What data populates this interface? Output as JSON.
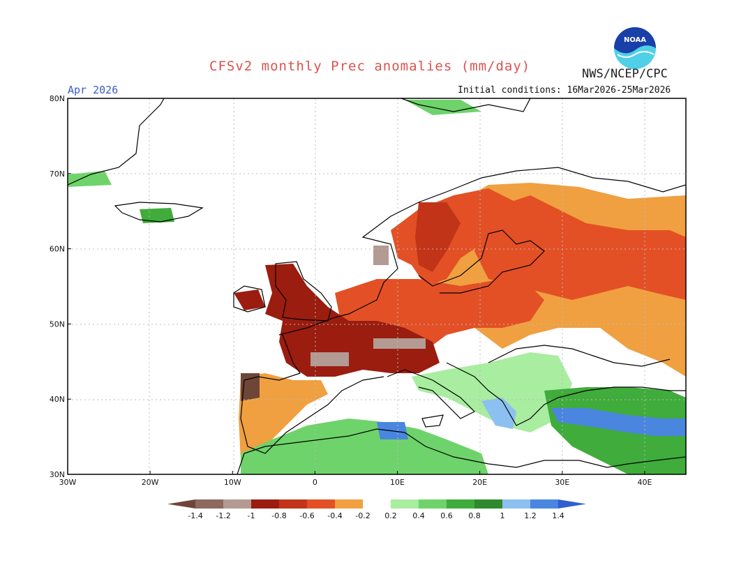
{
  "header": {
    "title": "CFSv2 monthly Prec anomalies (mm/day)",
    "agency": "NWS/NCEP/CPC",
    "logo_text": "NOAA",
    "target_month": "Apr 2026",
    "initial_conditions": "Initial conditions: 16Mar2026-25Mar2026"
  },
  "axes": {
    "lat_labels": [
      "80N",
      "70N",
      "60N",
      "50N",
      "40N",
      "30N"
    ],
    "lon_labels": [
      "30W",
      "20W",
      "10W",
      "0",
      "10E",
      "20E",
      "30E",
      "40E"
    ],
    "lat_range": [
      30,
      80
    ],
    "lon_range": [
      -30,
      45
    ]
  },
  "colorbar": {
    "labels": [
      "-1.4",
      "-1.2",
      "-1",
      "-0.8",
      "-0.6",
      "-0.4",
      "-0.2",
      "0.2",
      "0.4",
      "0.6",
      "0.8",
      "1",
      "1.2",
      "1.4"
    ],
    "colors": [
      "#6e4637",
      "#8c6a5d",
      "#b39a92",
      "#9a1d10",
      "#c23418",
      "#e35025",
      "#f0a040",
      "#ffffff",
      "#a8eda0",
      "#6ed36a",
      "#3fac3b",
      "#2f8a2d",
      "#8cc0f0",
      "#4a86e0",
      "#2f5fd0"
    ]
  },
  "colors": {
    "title": "#d9534f",
    "month": "#3a5bc7",
    "coast": "#000000",
    "grid": "#bbbbbb"
  }
}
